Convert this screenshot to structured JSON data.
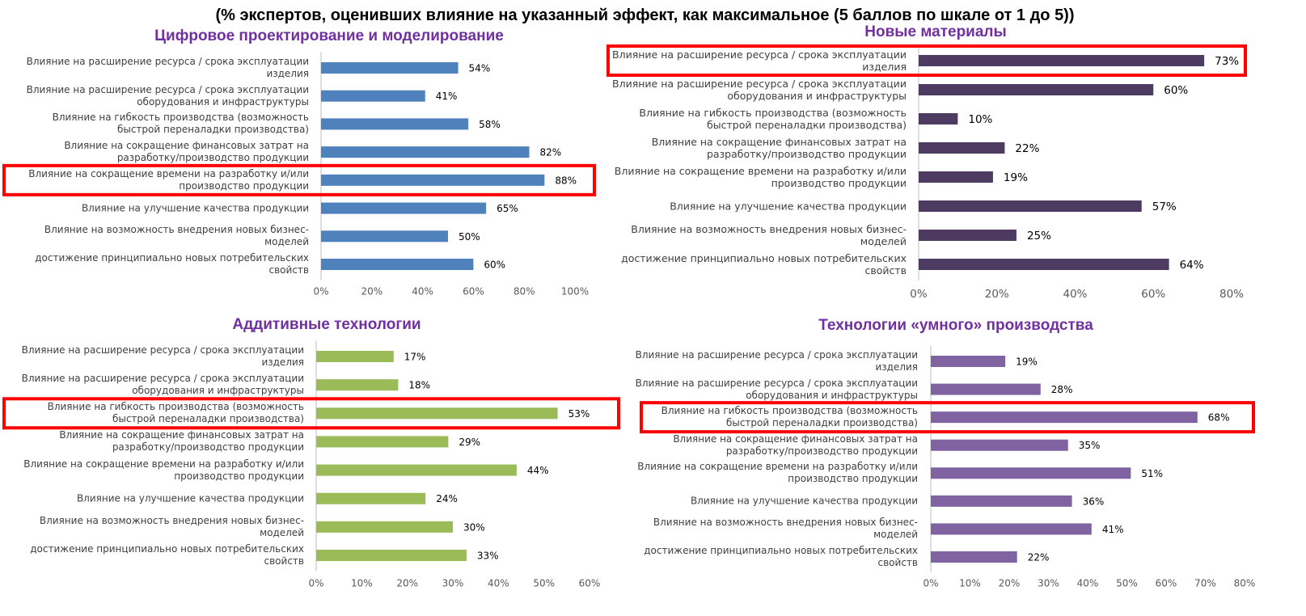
{
  "header": {
    "subtitle": "(% экспертов, оценивших влияние на указанный эффект, как максимальное (5 баллов по шкале от 1 до 5))"
  },
  "chart_data": [
    {
      "type": "bar",
      "orientation": "horizontal",
      "title": "Цифровое проектирование и моделирование",
      "color": "#4f81bd",
      "highlight": 4,
      "categories": [
        "Влияние на расширение ресурса / срока эксплуатации изделия",
        "Влияние на расширение ресурса / срока эксплуатации оборудования и инфраструктуры",
        "Влияние на гибкость производства (возможность быстрой переналадки производства)",
        "Влияние на сокращение финансовых затрат на разработку/производство продукции",
        "Влияние на сокращение времени на разработку и/или производство продукции",
        "Влияние на улучшение качества продукции",
        "Влияние на возможность внедрения новых бизнес-моделей",
        "достижение принципиально новых потребительских свойств"
      ],
      "values": [
        54,
        41,
        58,
        82,
        88,
        65,
        50,
        60
      ],
      "value_labels": [
        "54%",
        "41%",
        "58%",
        "82%",
        "88%",
        "65%",
        "50%",
        "60%"
      ],
      "xlim": [
        0,
        100
      ],
      "xticks": [
        {
          "value": 0,
          "label": "0%"
        },
        {
          "value": 20,
          "label": "20%"
        },
        {
          "value": 40,
          "label": "40%"
        },
        {
          "value": 60,
          "label": "60%"
        },
        {
          "value": 80,
          "label": "80%"
        },
        {
          "value": 100,
          "label": "100%"
        }
      ]
    },
    {
      "type": "bar",
      "orientation": "horizontal",
      "title": "Новые материалы",
      "color": "#4e3b62",
      "highlight": 0,
      "categories": [
        "Влияние на расширение ресурса / срока эксплуатации изделия",
        "Влияние на расширение ресурса / срока эксплуатации оборудования и инфраструктуры",
        "Влияние на гибкость производства (возможность быстрой переналадки производства)",
        "Влияние на сокращение финансовых затрат на разработку/производство продукции",
        "Влияние на сокращение времени на разработку и/или производство продукции",
        "Влияние на улучшение качества продукции",
        "Влияние на возможность внедрения новых бизнес-моделей",
        "достижение принципиально новых потребительских свойств"
      ],
      "values": [
        73,
        60,
        10,
        22,
        19,
        57,
        25,
        64
      ],
      "value_labels": [
        "73%",
        "60%",
        "10%",
        "22%",
        "19%",
        "57%",
        "25%",
        "64%"
      ],
      "xlim": [
        0,
        80
      ],
      "xticks": [
        {
          "value": 0,
          "label": "0%"
        },
        {
          "value": 20,
          "label": "20%"
        },
        {
          "value": 40,
          "label": "40%"
        },
        {
          "value": 60,
          "label": "60%"
        },
        {
          "value": 80,
          "label": "80%"
        }
      ]
    },
    {
      "type": "bar",
      "orientation": "horizontal",
      "title": "Аддитивные технологии",
      "color": "#9bbb59",
      "highlight": 2,
      "categories": [
        "Влияние на расширение ресурса / срока эксплуатации изделия",
        "Влияние на расширение ресурса / срока эксплуатации оборудования и инфраструктуры",
        "Влияние на гибкость производства (возможность быстрой переналадки производства)",
        "Влияние на сокращение финансовых затрат на разработку/производство продукции",
        "Влияние на сокращение времени на разработку и/или производство продукции",
        "Влияние на улучшение качества продукции",
        "Влияние на возможность внедрения новых бизнес-моделей",
        "достижение принципиально новых потребительских свойств"
      ],
      "values": [
        17,
        18,
        53,
        29,
        44,
        24,
        30,
        33
      ],
      "value_labels": [
        "17%",
        "18%",
        "53%",
        "29%",
        "44%",
        "24%",
        "30%",
        "33%"
      ],
      "xlim": [
        0,
        60
      ],
      "xticks": [
        {
          "value": 0,
          "label": "0%"
        },
        {
          "value": 10,
          "label": "10%"
        },
        {
          "value": 20,
          "label": "20%"
        },
        {
          "value": 30,
          "label": "30%"
        },
        {
          "value": 40,
          "label": "40%"
        },
        {
          "value": 50,
          "label": "50%"
        },
        {
          "value": 60,
          "label": "60%"
        }
      ]
    },
    {
      "type": "bar",
      "orientation": "horizontal",
      "title": "Технологии «умного» производства",
      "color": "#8064a2",
      "highlight": 2,
      "categories": [
        "Влияние на расширение ресурса / срока эксплуатации изделия",
        "Влияние на расширение ресурса / срока эксплуатации оборудования и инфраструктуры",
        "Влияние на гибкость производства (возможность быстрой переналадки производства)",
        "Влияние на сокращение финансовых затрат на разработку/производство продукции",
        "Влияние на сокращение времени на разработку и/или производство продукции",
        "Влияние на улучшение качества продукции",
        "Влияние на возможность внедрения новых бизнес-моделей",
        "достижение принципиально новых потребительских свойств"
      ],
      "values": [
        19,
        28,
        68,
        35,
        51,
        36,
        41,
        22
      ],
      "value_labels": [
        "19%",
        "28%",
        "68%",
        "35%",
        "51%",
        "36%",
        "41%",
        "22%"
      ],
      "xlim": [
        0,
        80
      ],
      "xticks": [
        {
          "value": 0,
          "label": "0%"
        },
        {
          "value": 10,
          "label": "10%"
        },
        {
          "value": 20,
          "label": "20%"
        },
        {
          "value": 30,
          "label": "30%"
        },
        {
          "value": 40,
          "label": "40%"
        },
        {
          "value": 50,
          "label": "50%"
        },
        {
          "value": 60,
          "label": "60%"
        },
        {
          "value": 70,
          "label": "70%"
        },
        {
          "value": 80,
          "label": "80%"
        }
      ]
    }
  ]
}
